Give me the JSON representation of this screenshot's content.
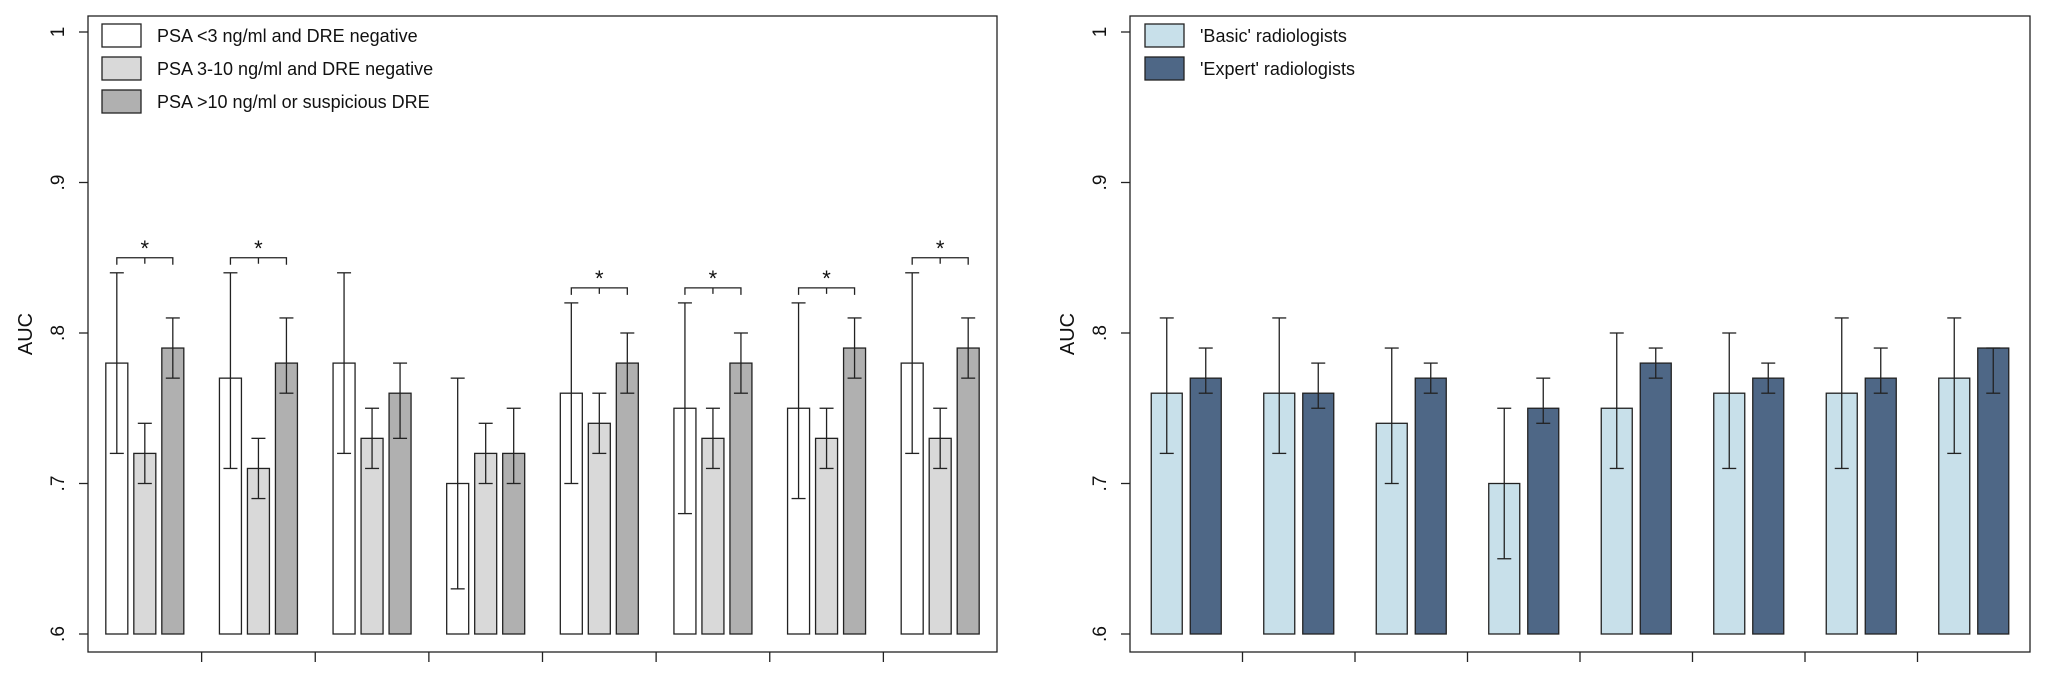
{
  "chart_data": [
    {
      "type": "bar",
      "ylabel": "AUC",
      "ylim": [
        0.6,
        1.0
      ],
      "yticks": [
        0.6,
        0.7,
        0.8,
        0.9,
        1.0
      ],
      "ytick_labels": [
        ".6",
        ".7",
        ".8",
        ".9",
        "1"
      ],
      "grid": false,
      "legend_position": "top-left",
      "group_count": 8,
      "series": [
        {
          "name": "PSA <3 ng/ml and DRE negative",
          "color": "#ffffff",
          "values": [
            0.78,
            0.77,
            0.78,
            0.7,
            0.76,
            0.75,
            0.75,
            0.78
          ],
          "ci_lower": [
            0.72,
            0.71,
            0.72,
            0.63,
            0.7,
            0.68,
            0.69,
            0.72
          ],
          "ci_upper": [
            0.84,
            0.84,
            0.84,
            0.77,
            0.82,
            0.82,
            0.82,
            0.84
          ]
        },
        {
          "name": "PSA 3-10 ng/ml and DRE negative",
          "color": "#d9d9d9",
          "values": [
            0.72,
            0.71,
            0.73,
            0.72,
            0.74,
            0.73,
            0.73,
            0.73
          ],
          "ci_lower": [
            0.7,
            0.69,
            0.71,
            0.7,
            0.72,
            0.71,
            0.71,
            0.71
          ],
          "ci_upper": [
            0.74,
            0.73,
            0.75,
            0.74,
            0.76,
            0.75,
            0.75,
            0.75
          ]
        },
        {
          "name": "PSA >10 ng/ml or suspicious DRE",
          "color": "#b0b0b0",
          "values": [
            0.79,
            0.78,
            0.76,
            0.72,
            0.78,
            0.78,
            0.79,
            0.79
          ],
          "ci_lower": [
            0.77,
            0.76,
            0.73,
            0.7,
            0.76,
            0.76,
            0.77,
            0.77
          ],
          "ci_upper": [
            0.81,
            0.81,
            0.78,
            0.75,
            0.8,
            0.8,
            0.81,
            0.81
          ]
        }
      ],
      "annotations": [
        {
          "group": 0,
          "text": "*",
          "level": 0.85
        },
        {
          "group": 1,
          "text": "*",
          "level": 0.85
        },
        {
          "group": 4,
          "text": "*",
          "level": 0.83
        },
        {
          "group": 5,
          "text": "*",
          "level": 0.83
        },
        {
          "group": 6,
          "text": "*",
          "level": 0.83
        },
        {
          "group": 7,
          "text": "*",
          "level": 0.85
        }
      ]
    },
    {
      "type": "bar",
      "ylabel": "AUC",
      "ylim": [
        0.6,
        1.0
      ],
      "yticks": [
        0.6,
        0.7,
        0.8,
        0.9,
        1.0
      ],
      "ytick_labels": [
        ".6",
        ".7",
        ".8",
        ".9",
        "1"
      ],
      "grid": false,
      "legend_position": "top-left",
      "group_count": 8,
      "series": [
        {
          "name": "'Basic' radiologists",
          "color": "#c8e0ea",
          "values": [
            0.76,
            0.76,
            0.74,
            0.7,
            0.75,
            0.76,
            0.76,
            0.77
          ],
          "ci_lower": [
            0.72,
            0.72,
            0.7,
            0.65,
            0.71,
            0.71,
            0.71,
            0.72
          ],
          "ci_upper": [
            0.81,
            0.81,
            0.79,
            0.75,
            0.8,
            0.8,
            0.81,
            0.81
          ]
        },
        {
          "name": "'Expert' radiologists",
          "color": "#4e6786",
          "values": [
            0.77,
            0.76,
            0.77,
            0.75,
            0.78,
            0.77,
            0.77,
            0.79
          ],
          "ci_lower": [
            0.76,
            0.75,
            0.76,
            0.74,
            0.77,
            0.76,
            0.76,
            0.76
          ],
          "ci_upper": [
            0.79,
            0.78,
            0.78,
            0.77,
            0.79,
            0.78,
            0.79,
            0.79
          ]
        }
      ],
      "annotations": []
    }
  ]
}
